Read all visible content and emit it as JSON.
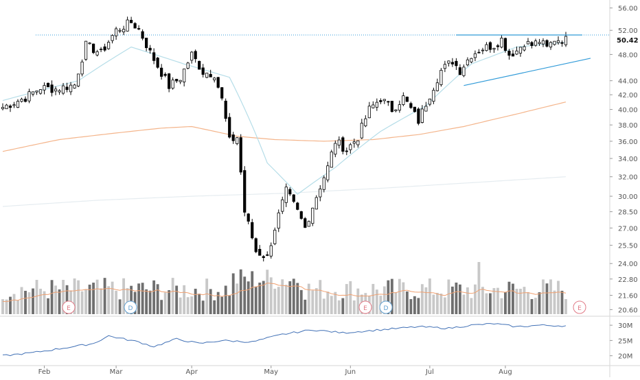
{
  "chart_data": {
    "type": "candlestick",
    "price_axis": {
      "scale": "log",
      "ticks": [
        "56.00",
        "52.00",
        "48.00",
        "44.00",
        "42.00",
        "40.00",
        "38.00",
        "36.00",
        "34.00",
        "32.00",
        "30.00",
        "28.50",
        "27.00",
        "25.50",
        "24.00",
        "22.80",
        "21.60",
        "20.60"
      ],
      "last_price": "50.42",
      "range": [
        20.2,
        57.5
      ]
    },
    "x_axis": {
      "labels": [
        "Feb",
        "Mar",
        "Apr",
        "May",
        "Jun",
        "Jul",
        "Aug"
      ]
    },
    "oscillator_axis": {
      "ticks": [
        "30M",
        "25M",
        "20M"
      ]
    },
    "event_markers": [
      "E",
      "D",
      "E",
      "D",
      "E"
    ],
    "sessions": 150,
    "reference_lines": {
      "resistance": 51.2
    },
    "candles_anchor_closes": [
      [
        0,
        40.3
      ],
      [
        6,
        41.6
      ],
      [
        10,
        43.0
      ],
      [
        14,
        42.8
      ],
      [
        19,
        43.4
      ],
      [
        22,
        49.5
      ],
      [
        26,
        48.2
      ],
      [
        30,
        52.0
      ],
      [
        34,
        53.4
      ],
      [
        36,
        52.2
      ],
      [
        39,
        48.3
      ],
      [
        41,
        46.2
      ],
      [
        44,
        43.2
      ],
      [
        47,
        44.4
      ],
      [
        50,
        48.0
      ],
      [
        53,
        45.3
      ],
      [
        56,
        45.0
      ],
      [
        58,
        41.3
      ],
      [
        60,
        36.0
      ],
      [
        62,
        36.5
      ],
      [
        64,
        28.5
      ],
      [
        67,
        25.0
      ],
      [
        70,
        24.5
      ],
      [
        72,
        27.0
      ],
      [
        75,
        30.5
      ],
      [
        78,
        28.5
      ],
      [
        80,
        27.0
      ],
      [
        83,
        30.0
      ],
      [
        86,
        33.0
      ],
      [
        88,
        36.0
      ],
      [
        91,
        35.0
      ],
      [
        94,
        36.5
      ],
      [
        97,
        40.0
      ],
      [
        100,
        41.5
      ],
      [
        103,
        40.0
      ],
      [
        106,
        41.6
      ],
      [
        110,
        38.5
      ],
      [
        113,
        42.0
      ],
      [
        116,
        45.5
      ],
      [
        119,
        47.0
      ],
      [
        121,
        45.5
      ],
      [
        124,
        48.0
      ],
      [
        127,
        49.0
      ],
      [
        130,
        49.5
      ],
      [
        132,
        50.5
      ],
      [
        134,
        48.0
      ],
      [
        136,
        48.6
      ],
      [
        138,
        50.0
      ],
      [
        140,
        49.5
      ],
      [
        142,
        50.2
      ],
      [
        144,
        49.0
      ],
      [
        146,
        50.5
      ],
      [
        149,
        50.4
      ]
    ],
    "ma_fast": [
      [
        0,
        41.2
      ],
      [
        20,
        44.0
      ],
      [
        34,
        49.2
      ],
      [
        48,
        46.5
      ],
      [
        60,
        44.5
      ],
      [
        70,
        33.5
      ],
      [
        78,
        30.2
      ],
      [
        88,
        33.0
      ],
      [
        100,
        37.2
      ],
      [
        112,
        40.5
      ],
      [
        124,
        46.5
      ],
      [
        136,
        49.2
      ],
      [
        149,
        50.0
      ]
    ],
    "ma_mid": [
      [
        0,
        34.8
      ],
      [
        15,
        36.2
      ],
      [
        30,
        37.0
      ],
      [
        42,
        37.6
      ],
      [
        50,
        37.8
      ],
      [
        62,
        36.6
      ],
      [
        72,
        36.2
      ],
      [
        85,
        36.0
      ],
      [
        98,
        36.2
      ],
      [
        110,
        36.8
      ],
      [
        122,
        37.8
      ],
      [
        136,
        39.4
      ],
      [
        149,
        41.0
      ]
    ],
    "ma_slow": [
      [
        0,
        29.0
      ],
      [
        25,
        29.6
      ],
      [
        50,
        30.0
      ],
      [
        75,
        30.3
      ],
      [
        100,
        30.8
      ],
      [
        125,
        31.4
      ],
      [
        149,
        32.0
      ]
    ],
    "oscillator": [
      [
        0,
        20.0
      ],
      [
        8,
        21.0
      ],
      [
        16,
        22.5
      ],
      [
        24,
        24.0
      ],
      [
        28,
        26.5
      ],
      [
        36,
        24.5
      ],
      [
        40,
        23.0
      ],
      [
        46,
        25.5
      ],
      [
        52,
        24.0
      ],
      [
        58,
        25.0
      ],
      [
        66,
        24.5
      ],
      [
        74,
        27.0
      ],
      [
        82,
        28.5
      ],
      [
        90,
        27.5
      ],
      [
        100,
        28.5
      ],
      [
        110,
        29.5
      ],
      [
        118,
        29.0
      ],
      [
        124,
        30.0
      ],
      [
        130,
        30.5
      ],
      [
        136,
        29.5
      ],
      [
        142,
        30.0
      ],
      [
        149,
        29.8
      ]
    ],
    "colors": {
      "up_candle_fill": "#ffffff",
      "down_candle_fill": "#000000",
      "ma_fast": "#b5dde8",
      "ma_mid": "#f4b48a",
      "ma_slow": "#e5ecf0",
      "volume_light": "#c8c8c8",
      "volume_dark": "#6f6f6f",
      "volume_ma": "#f0a070",
      "oscillator_line": "#3f6fb5",
      "trendline": "#2f9ad8",
      "marker_e": "#e07a86",
      "marker_d": "#5f9fd0"
    }
  }
}
